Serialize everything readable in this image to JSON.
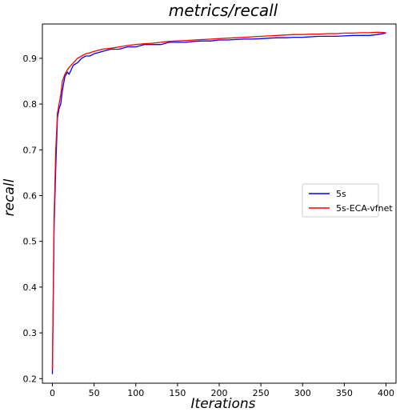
{
  "chart_data": {
    "type": "line",
    "title": "metrics/recall",
    "xlabel": "Iterations",
    "ylabel": "recall",
    "xlim": [
      -12,
      412
    ],
    "ylim": [
      0.19,
      0.975
    ],
    "xticks": [
      0,
      50,
      100,
      150,
      200,
      250,
      300,
      350,
      400
    ],
    "yticks": [
      0.2,
      0.3,
      0.4,
      0.5,
      0.6,
      0.7,
      0.8,
      0.9
    ],
    "grid": false,
    "legend_position": "center-right",
    "series": [
      {
        "name": "5s",
        "color": "#0000ff",
        "x": [
          0,
          2,
          4,
          6,
          8,
          10,
          12,
          15,
          18,
          20,
          25,
          30,
          35,
          40,
          45,
          50,
          60,
          70,
          80,
          90,
          100,
          110,
          120,
          130,
          140,
          150,
          160,
          170,
          180,
          190,
          200,
          210,
          220,
          230,
          240,
          250,
          260,
          270,
          280,
          290,
          300,
          310,
          320,
          330,
          340,
          350,
          360,
          370,
          380,
          390,
          400
        ],
        "y": [
          0.21,
          0.53,
          0.66,
          0.77,
          0.79,
          0.8,
          0.83,
          0.86,
          0.87,
          0.865,
          0.885,
          0.89,
          0.9,
          0.905,
          0.905,
          0.91,
          0.915,
          0.92,
          0.92,
          0.925,
          0.925,
          0.93,
          0.93,
          0.93,
          0.935,
          0.935,
          0.935,
          0.937,
          0.938,
          0.938,
          0.94,
          0.94,
          0.941,
          0.942,
          0.942,
          0.943,
          0.944,
          0.945,
          0.945,
          0.946,
          0.946,
          0.947,
          0.948,
          0.948,
          0.948,
          0.949,
          0.95,
          0.95,
          0.95,
          0.952,
          0.955
        ]
      },
      {
        "name": "5s-ECA-vfnet",
        "color": "#ff0000",
        "x": [
          0,
          2,
          4,
          6,
          8,
          10,
          12,
          15,
          18,
          20,
          25,
          30,
          35,
          40,
          45,
          50,
          60,
          70,
          80,
          90,
          100,
          110,
          120,
          130,
          140,
          150,
          160,
          170,
          180,
          190,
          200,
          210,
          220,
          230,
          240,
          250,
          260,
          270,
          280,
          290,
          300,
          310,
          320,
          330,
          340,
          350,
          360,
          370,
          380,
          390,
          400
        ],
        "y": [
          0.22,
          0.55,
          0.7,
          0.78,
          0.8,
          0.82,
          0.85,
          0.865,
          0.875,
          0.88,
          0.89,
          0.9,
          0.905,
          0.91,
          0.912,
          0.915,
          0.92,
          0.922,
          0.925,
          0.928,
          0.93,
          0.932,
          0.933,
          0.935,
          0.937,
          0.938,
          0.939,
          0.94,
          0.941,
          0.942,
          0.943,
          0.944,
          0.945,
          0.946,
          0.947,
          0.948,
          0.949,
          0.95,
          0.951,
          0.952,
          0.952,
          0.953,
          0.953,
          0.954,
          0.954,
          0.955,
          0.955,
          0.956,
          0.956,
          0.957,
          0.956
        ]
      }
    ]
  }
}
